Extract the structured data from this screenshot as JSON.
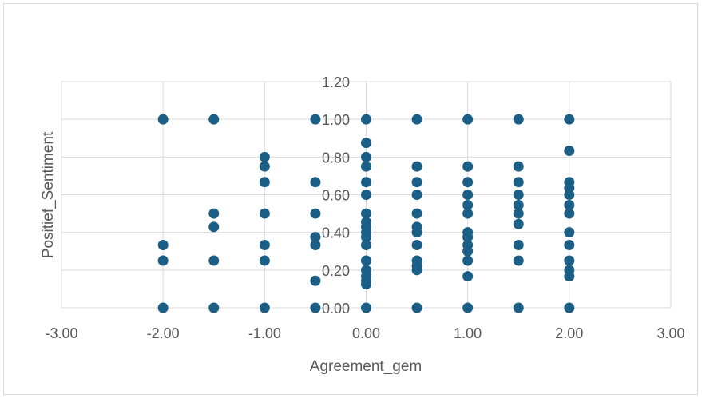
{
  "chart_data": {
    "type": "scatter",
    "title": "",
    "xlabel": "Agreement_gem",
    "ylabel": "Positief_Sentiment",
    "xlim": [
      -3,
      3
    ],
    "ylim": [
      0,
      1.2
    ],
    "x_ticks": [
      "-3.00",
      "-2.00",
      "-1.00",
      "0.00",
      "1.00",
      "2.00",
      "3.00"
    ],
    "y_ticks": [
      "0.00",
      "0.20",
      "0.40",
      "0.60",
      "0.80",
      "1.00",
      "1.20"
    ],
    "grid": true,
    "marker_color": "#1b5e86",
    "points": [
      {
        "x": -2,
        "y": 1.0
      },
      {
        "x": -2,
        "y": 0.333
      },
      {
        "x": -2,
        "y": 0.25
      },
      {
        "x": -2,
        "y": 0.0
      },
      {
        "x": -1.5,
        "y": 1.0
      },
      {
        "x": -1.5,
        "y": 0.5
      },
      {
        "x": -1.5,
        "y": 0.429
      },
      {
        "x": -1.5,
        "y": 0.25
      },
      {
        "x": -1.5,
        "y": 0.0
      },
      {
        "x": -1,
        "y": 0.8
      },
      {
        "x": -1,
        "y": 0.75
      },
      {
        "x": -1,
        "y": 0.667
      },
      {
        "x": -1,
        "y": 0.5
      },
      {
        "x": -1,
        "y": 0.333
      },
      {
        "x": -1,
        "y": 0.25
      },
      {
        "x": -1,
        "y": 0.0
      },
      {
        "x": -0.5,
        "y": 1.0
      },
      {
        "x": -0.5,
        "y": 0.667
      },
      {
        "x": -0.5,
        "y": 0.5
      },
      {
        "x": -0.5,
        "y": 0.375
      },
      {
        "x": -0.5,
        "y": 0.333
      },
      {
        "x": -0.5,
        "y": 0.143
      },
      {
        "x": -0.5,
        "y": 0.0
      },
      {
        "x": 0,
        "y": 1.0
      },
      {
        "x": 0,
        "y": 0.875
      },
      {
        "x": 0,
        "y": 0.8
      },
      {
        "x": 0,
        "y": 0.75
      },
      {
        "x": 0,
        "y": 0.667
      },
      {
        "x": 0,
        "y": 0.6
      },
      {
        "x": 0,
        "y": 0.5
      },
      {
        "x": 0,
        "y": 0.455
      },
      {
        "x": 0,
        "y": 0.429
      },
      {
        "x": 0,
        "y": 0.4
      },
      {
        "x": 0,
        "y": 0.375
      },
      {
        "x": 0,
        "y": 0.333
      },
      {
        "x": 0,
        "y": 0.25
      },
      {
        "x": 0,
        "y": 0.2
      },
      {
        "x": 0,
        "y": 0.167
      },
      {
        "x": 0,
        "y": 0.143
      },
      {
        "x": 0,
        "y": 0.125
      },
      {
        "x": 0,
        "y": 0.0
      },
      {
        "x": 0.5,
        "y": 1.0
      },
      {
        "x": 0.5,
        "y": 0.75
      },
      {
        "x": 0.5,
        "y": 0.667
      },
      {
        "x": 0.5,
        "y": 0.6
      },
      {
        "x": 0.5,
        "y": 0.5
      },
      {
        "x": 0.5,
        "y": 0.429
      },
      {
        "x": 0.5,
        "y": 0.4
      },
      {
        "x": 0.5,
        "y": 0.333
      },
      {
        "x": 0.5,
        "y": 0.25
      },
      {
        "x": 0.5,
        "y": 0.222
      },
      {
        "x": 0.5,
        "y": 0.2
      },
      {
        "x": 0.5,
        "y": 0.0
      },
      {
        "x": 1,
        "y": 1.0
      },
      {
        "x": 1,
        "y": 0.75
      },
      {
        "x": 1,
        "y": 0.667
      },
      {
        "x": 1,
        "y": 0.6
      },
      {
        "x": 1,
        "y": 0.545
      },
      {
        "x": 1,
        "y": 0.5
      },
      {
        "x": 1,
        "y": 0.4
      },
      {
        "x": 1,
        "y": 0.375
      },
      {
        "x": 1,
        "y": 0.333
      },
      {
        "x": 1,
        "y": 0.3
      },
      {
        "x": 1,
        "y": 0.25
      },
      {
        "x": 1,
        "y": 0.167
      },
      {
        "x": 1,
        "y": 0.0
      },
      {
        "x": 1.5,
        "y": 1.0
      },
      {
        "x": 1.5,
        "y": 0.75
      },
      {
        "x": 1.5,
        "y": 0.667
      },
      {
        "x": 1.5,
        "y": 0.6
      },
      {
        "x": 1.5,
        "y": 0.545
      },
      {
        "x": 1.5,
        "y": 0.5
      },
      {
        "x": 1.5,
        "y": 0.444
      },
      {
        "x": 1.5,
        "y": 0.333
      },
      {
        "x": 1.5,
        "y": 0.25
      },
      {
        "x": 1.5,
        "y": 0.0
      },
      {
        "x": 2,
        "y": 1.0
      },
      {
        "x": 2,
        "y": 0.833
      },
      {
        "x": 2,
        "y": 0.667
      },
      {
        "x": 2,
        "y": 0.636
      },
      {
        "x": 2,
        "y": 0.6
      },
      {
        "x": 2,
        "y": 0.545
      },
      {
        "x": 2,
        "y": 0.5
      },
      {
        "x": 2,
        "y": 0.4
      },
      {
        "x": 2,
        "y": 0.333
      },
      {
        "x": 2,
        "y": 0.25
      },
      {
        "x": 2,
        "y": 0.2
      },
      {
        "x": 2,
        "y": 0.167
      },
      {
        "x": 2,
        "y": 0.0
      }
    ]
  }
}
